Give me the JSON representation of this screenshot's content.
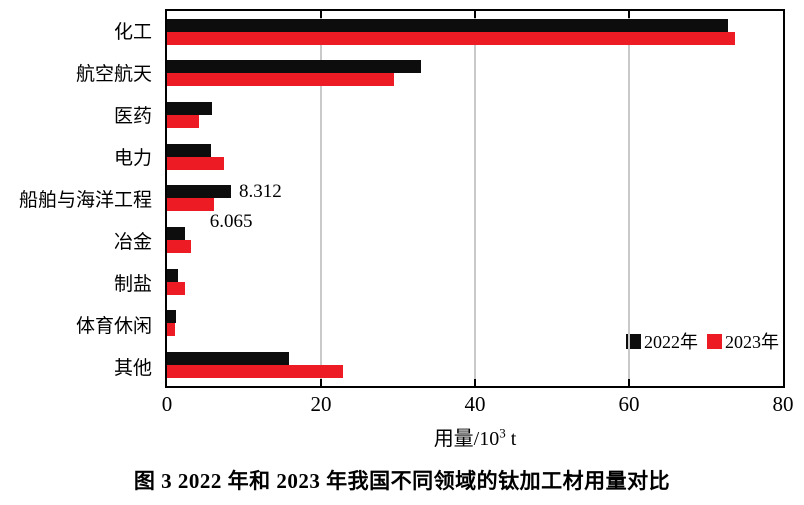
{
  "chart_data": {
    "type": "bar",
    "orientation": "horizontal",
    "categories": [
      "化工",
      "航空航天",
      "医药",
      "电力",
      "船舶与海洋工程",
      "冶金",
      "制盐",
      "体育休闲",
      "其他"
    ],
    "series": [
      {
        "name": "2022年",
        "color": "#0d0d0d",
        "values": [
          72.8,
          33.0,
          5.8,
          5.7,
          8.312,
          2.4,
          1.4,
          1.2,
          15.8
        ]
      },
      {
        "name": "2023年",
        "color": "#ed1c24",
        "values": [
          73.8,
          29.5,
          4.1,
          7.4,
          6.065,
          3.1,
          2.3,
          1.0,
          22.9
        ]
      }
    ],
    "xlabel": "用量/10³ t",
    "xlabel_parts": {
      "base": "用量/10",
      "sup": "3",
      "unit": "t"
    },
    "xlim": [
      0,
      80
    ],
    "xticks": [
      "0",
      "20",
      "40",
      "60",
      "80"
    ],
    "grid_x": [
      20,
      40,
      60
    ],
    "legend_position": "bottom-right-inside",
    "data_labels": [
      {
        "series": 0,
        "category": "船舶与海洋工程",
        "text": "8.312"
      },
      {
        "series": 1,
        "category": "船舶与海洋工程",
        "text": "6.065"
      }
    ]
  },
  "colors": {
    "bar_2022": "#0d0d0d",
    "bar_2023": "#ed1c24",
    "gridline": "#c9c9c9",
    "axis": "#000000"
  },
  "caption": "图 3  2022 年和 2023 年我国不同领域的钛加工材用量对比"
}
